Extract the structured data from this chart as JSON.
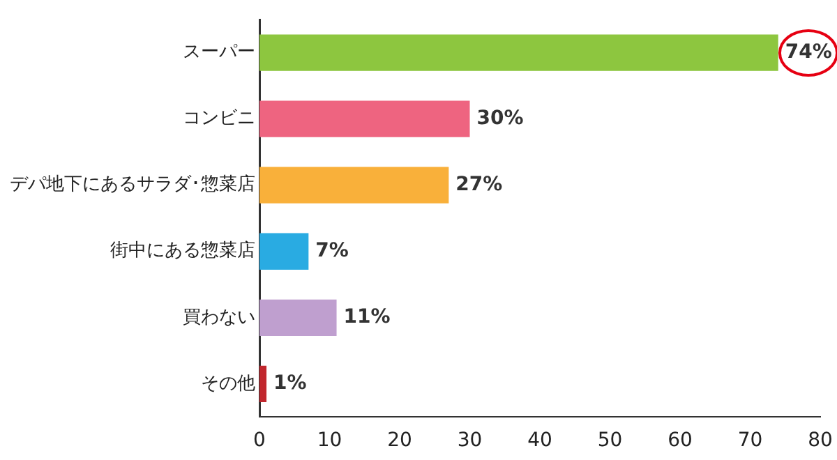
{
  "chart_data": {
    "type": "bar",
    "orientation": "horizontal",
    "categories": [
      "スーパー",
      "コンビニ",
      "デパ地下にあるサラダ･惣菜店",
      "街中にある惣菜店",
      "買わない",
      "その他"
    ],
    "values": [
      74,
      30,
      27,
      7,
      11,
      1
    ],
    "colors": [
      "#8dc63f",
      "#ee6480",
      "#f9b03a",
      "#29abe2",
      "#bf9fcf",
      "#c1272d"
    ],
    "value_labels": [
      "74%",
      "30%",
      "27%",
      "7%",
      "11%",
      "1%"
    ],
    "xlim": [
      0,
      80
    ],
    "xticks": [
      0,
      10,
      20,
      30,
      40,
      50,
      60,
      70,
      80
    ],
    "grid": false,
    "legend": false
  }
}
